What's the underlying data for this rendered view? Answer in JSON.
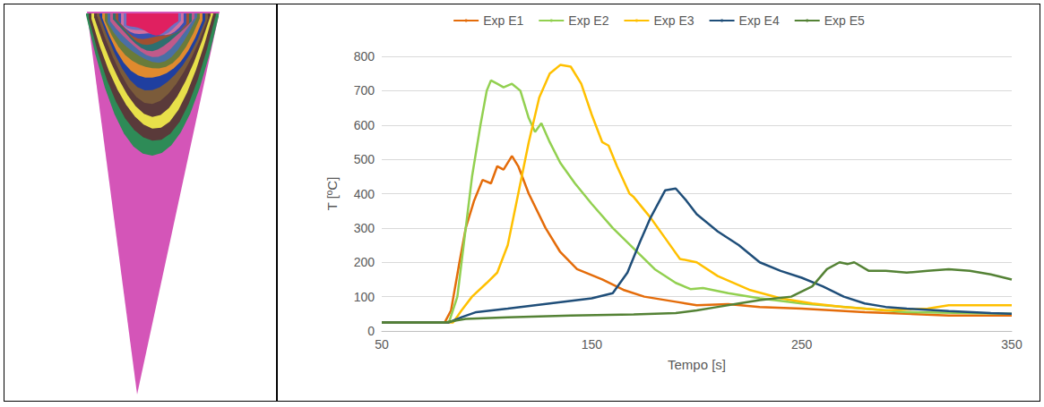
{
  "chart_data": {
    "type": "line",
    "xlabel": "Tempo [s]",
    "ylabel": "T [ºC]",
    "xlim": [
      50,
      350
    ],
    "xticks": [
      50,
      150,
      250,
      350
    ],
    "ylim": [
      0,
      800
    ],
    "yticks": [
      0,
      100,
      200,
      300,
      400,
      500,
      600,
      700,
      800
    ],
    "grid": true,
    "legend": "top",
    "series": [
      {
        "name": "Exp E1",
        "color": "#E46C0A",
        "x": [
          50,
          80,
          83,
          87,
          90,
          94,
          98,
          102,
          105,
          108,
          112,
          115,
          120,
          128,
          135,
          143,
          155,
          165,
          175,
          190,
          200,
          215,
          230,
          250,
          280,
          300,
          320,
          350
        ],
        "values": [
          25,
          25,
          60,
          200,
          300,
          380,
          440,
          430,
          480,
          470,
          510,
          480,
          400,
          300,
          230,
          180,
          150,
          120,
          100,
          85,
          75,
          78,
          70,
          65,
          55,
          50,
          45,
          45
        ]
      },
      {
        "name": "Exp E2",
        "color": "#92D050",
        "x": [
          50,
          82,
          86,
          90,
          93,
          97,
          100,
          102,
          105,
          108,
          112,
          116,
          120,
          123,
          126,
          130,
          135,
          142,
          150,
          160,
          170,
          180,
          190,
          197,
          203,
          215,
          230,
          250,
          280,
          300,
          330,
          350
        ],
        "values": [
          25,
          25,
          100,
          300,
          450,
          600,
          700,
          730,
          720,
          710,
          720,
          700,
          620,
          580,
          605,
          550,
          490,
          430,
          370,
          300,
          240,
          180,
          140,
          122,
          125,
          110,
          95,
          80,
          65,
          55,
          52,
          50
        ]
      },
      {
        "name": "Exp E3",
        "color": "#FFC000",
        "x": [
          50,
          84,
          88,
          93,
          100,
          105,
          110,
          115,
          120,
          125,
          130,
          135,
          140,
          145,
          150,
          155,
          158,
          162,
          168,
          170,
          178,
          185,
          192,
          200,
          210,
          225,
          240,
          255,
          270,
          290,
          310,
          320,
          350
        ],
        "values": [
          25,
          25,
          60,
          100,
          140,
          170,
          250,
          400,
          550,
          680,
          750,
          775,
          770,
          720,
          630,
          550,
          540,
          480,
          400,
          390,
          330,
          270,
          210,
          200,
          160,
          120,
          95,
          80,
          70,
          60,
          65,
          75,
          75
        ]
      },
      {
        "name": "Exp E4",
        "color": "#1F4E79",
        "x": [
          50,
          82,
          88,
          95,
          110,
          130,
          150,
          160,
          167,
          173,
          178,
          185,
          190,
          195,
          200,
          210,
          220,
          230,
          240,
          250,
          260,
          270,
          280,
          290,
          300,
          320,
          340,
          350
        ],
        "values": [
          25,
          25,
          40,
          55,
          65,
          80,
          95,
          110,
          170,
          260,
          330,
          410,
          415,
          380,
          340,
          290,
          250,
          200,
          175,
          155,
          130,
          100,
          80,
          70,
          65,
          58,
          52,
          50
        ]
      },
      {
        "name": "Exp E5",
        "color": "#548235",
        "x": [
          50,
          80,
          90,
          110,
          140,
          170,
          190,
          200,
          210,
          220,
          230,
          245,
          255,
          262,
          268,
          272,
          275,
          282,
          290,
          300,
          310,
          320,
          330,
          340,
          350
        ],
        "values": [
          25,
          25,
          35,
          40,
          45,
          48,
          52,
          60,
          70,
          80,
          90,
          100,
          130,
          180,
          200,
          195,
          200,
          175,
          175,
          170,
          175,
          180,
          175,
          165,
          150
        ]
      }
    ]
  }
}
